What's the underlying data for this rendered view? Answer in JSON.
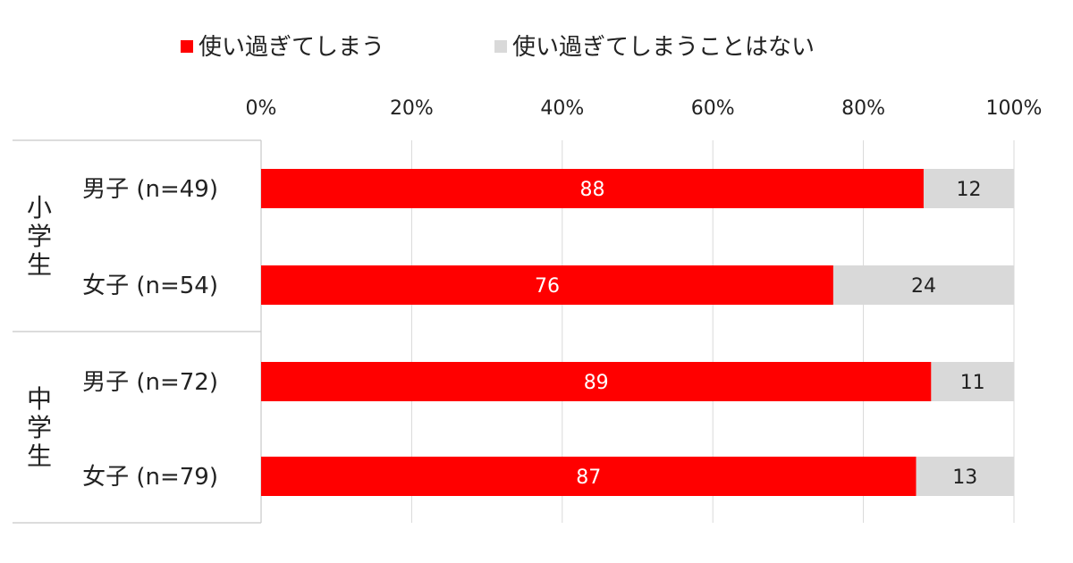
{
  "chart_data": {
    "type": "bar",
    "orientation": "horizontal",
    "stacked": true,
    "percent_scale": true,
    "xlim": [
      0,
      100
    ],
    "ticks": [
      "0%",
      "20%",
      "40%",
      "60%",
      "80%",
      "100%"
    ],
    "tick_values": [
      0,
      20,
      40,
      60,
      80,
      100
    ],
    "grid": true,
    "legend_placement": "top",
    "groups": [
      {
        "label": "小学生",
        "categories": [
          "男子 (n=49)",
          "女子 (n=54)"
        ]
      },
      {
        "label": "中学生",
        "categories": [
          "男子 (n=72)",
          "女子 (n=79)"
        ]
      }
    ],
    "categories": [
      "男子 (n=49)",
      "女子 (n=54)",
      "男子 (n=72)",
      "女子 (n=79)"
    ],
    "series": [
      {
        "name": "使い過ぎてしまう",
        "color": "#ff0000",
        "label_color": "#ffffff",
        "values": [
          88,
          76,
          89,
          87
        ]
      },
      {
        "name": "使い過ぎてしまうことはない",
        "color": "#d9d9d9",
        "label_color": "#222222",
        "values": [
          12,
          24,
          11,
          13
        ]
      }
    ]
  }
}
